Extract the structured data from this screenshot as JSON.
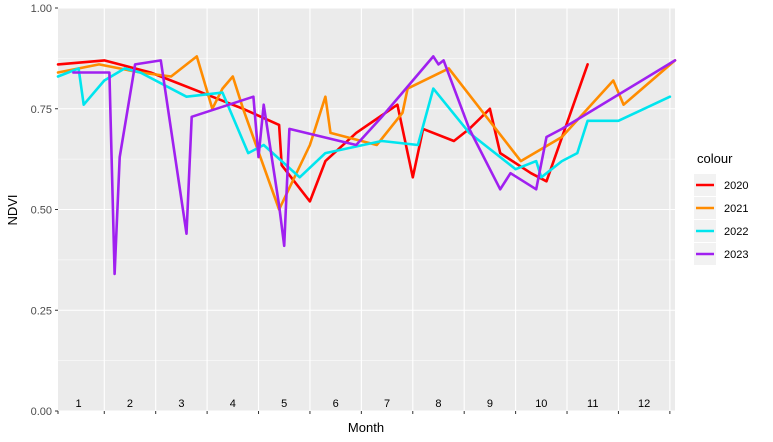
{
  "chart_data": {
    "type": "line",
    "xlabel": "Month",
    "ylabel": "NDVI",
    "ylim": [
      0,
      1
    ],
    "xlim": [
      0.6,
      12.6
    ],
    "y_ticks": [
      "0.00",
      "0.25",
      "0.50",
      "0.75",
      "1.00"
    ],
    "month_labels": [
      "1",
      "2",
      "3",
      "4",
      "5",
      "6",
      "7",
      "8",
      "9",
      "10",
      "11",
      "12"
    ],
    "grid": true,
    "legend": {
      "title": "colour",
      "position": "right"
    },
    "series": [
      {
        "name": "2020",
        "color": "#ff0000",
        "points": [
          [
            0.6,
            0.86
          ],
          [
            1.5,
            0.87
          ],
          [
            2.4,
            0.84
          ],
          [
            3.6,
            0.78
          ],
          [
            4.2,
            0.75
          ],
          [
            4.9,
            0.71
          ],
          [
            4.95,
            0.61
          ],
          [
            5.5,
            0.52
          ],
          [
            5.8,
            0.62
          ],
          [
            6.4,
            0.69
          ],
          [
            7.2,
            0.76
          ],
          [
            7.5,
            0.58
          ],
          [
            7.7,
            0.7
          ],
          [
            8.3,
            0.67
          ],
          [
            8.6,
            0.7
          ],
          [
            9.0,
            0.75
          ],
          [
            9.2,
            0.64
          ],
          [
            9.8,
            0.59
          ],
          [
            10.1,
            0.57
          ],
          [
            10.9,
            0.86
          ]
        ]
      },
      {
        "name": "2021",
        "color": "#ff8c00",
        "points": [
          [
            0.6,
            0.84
          ],
          [
            1.4,
            0.86
          ],
          [
            2.2,
            0.84
          ],
          [
            2.8,
            0.83
          ],
          [
            3.3,
            0.88
          ],
          [
            3.6,
            0.75
          ],
          [
            3.8,
            0.8
          ],
          [
            4.0,
            0.83
          ],
          [
            4.2,
            0.75
          ],
          [
            4.9,
            0.5
          ],
          [
            5.5,
            0.66
          ],
          [
            5.8,
            0.78
          ],
          [
            5.9,
            0.69
          ],
          [
            6.8,
            0.66
          ],
          [
            7.3,
            0.74
          ],
          [
            7.4,
            0.8
          ],
          [
            8.2,
            0.85
          ],
          [
            9.6,
            0.62
          ],
          [
            10.4,
            0.68
          ],
          [
            11.4,
            0.82
          ],
          [
            11.6,
            0.76
          ],
          [
            12.6,
            0.87
          ]
        ]
      },
      {
        "name": "2022",
        "color": "#00e5ee",
        "points": [
          [
            0.6,
            0.83
          ],
          [
            1.0,
            0.85
          ],
          [
            1.1,
            0.76
          ],
          [
            1.5,
            0.82
          ],
          [
            1.9,
            0.85
          ],
          [
            2.2,
            0.84
          ],
          [
            3.1,
            0.78
          ],
          [
            3.8,
            0.79
          ],
          [
            4.3,
            0.64
          ],
          [
            4.6,
            0.66
          ],
          [
            5.3,
            0.58
          ],
          [
            5.8,
            0.64
          ],
          [
            6.9,
            0.67
          ],
          [
            7.6,
            0.66
          ],
          [
            7.9,
            0.8
          ],
          [
            8.6,
            0.69
          ],
          [
            9.5,
            0.6
          ],
          [
            9.9,
            0.62
          ],
          [
            10.0,
            0.58
          ],
          [
            10.4,
            0.62
          ],
          [
            10.7,
            0.64
          ],
          [
            10.9,
            0.72
          ],
          [
            11.5,
            0.72
          ],
          [
            12.5,
            0.78
          ]
        ]
      },
      {
        "name": "2023",
        "color": "#a020f0",
        "points": [
          [
            0.9,
            0.84
          ],
          [
            1.6,
            0.84
          ],
          [
            1.7,
            0.34
          ],
          [
            1.8,
            0.63
          ],
          [
            2.1,
            0.86
          ],
          [
            2.6,
            0.87
          ],
          [
            3.1,
            0.44
          ],
          [
            3.2,
            0.73
          ],
          [
            4.4,
            0.78
          ],
          [
            4.5,
            0.63
          ],
          [
            4.6,
            0.76
          ],
          [
            4.9,
            0.51
          ],
          [
            5.0,
            0.41
          ],
          [
            5.1,
            0.7
          ],
          [
            6.4,
            0.66
          ],
          [
            6.9,
            0.73
          ],
          [
            7.5,
            0.82
          ],
          [
            7.9,
            0.88
          ],
          [
            8.0,
            0.86
          ],
          [
            8.1,
            0.87
          ],
          [
            8.6,
            0.7
          ],
          [
            9.2,
            0.55
          ],
          [
            9.4,
            0.59
          ],
          [
            9.9,
            0.55
          ],
          [
            10.1,
            0.68
          ],
          [
            10.4,
            0.7
          ],
          [
            12.6,
            0.87
          ]
        ]
      }
    ]
  }
}
